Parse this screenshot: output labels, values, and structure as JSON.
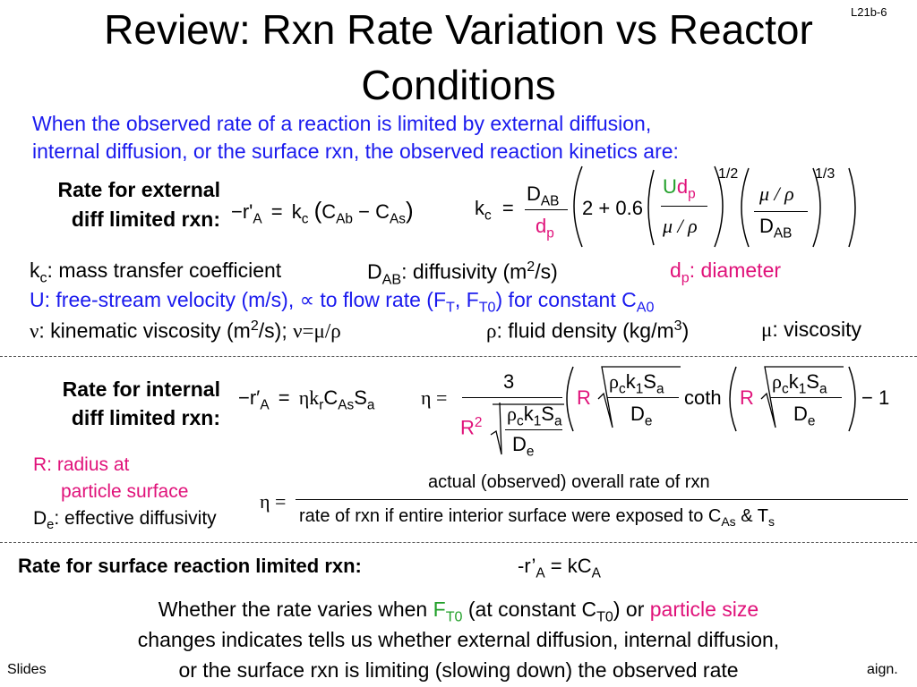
{
  "slide": {
    "id": "L21b-6",
    "title_line1": "Review: Rxn Rate Variation vs Reactor",
    "title_line2": "Conditions"
  },
  "intro": {
    "line1": "When the observed rate of a reaction is limited by external diffusion,",
    "line2": "internal diffusion, or the surface rxn, the observed reaction kinetics are:"
  },
  "external": {
    "label_line1": "Rate for external",
    "label_line2": "diff limited rxn:",
    "rate_lhs": "−r'",
    "rate_lhs_sub": "A",
    "eq_sign": "=",
    "kc": "k",
    "kc_sub": "c",
    "open_paren": "(",
    "cab": "C",
    "cab_sub": "Ab",
    "minus": "−",
    "cas": "C",
    "cas_sub": "As",
    "close_paren": ")",
    "kc2": "k",
    "kc2_sub": "c",
    "eq_sign2": "=",
    "dab_num": "D",
    "dab_num_sub": "AB",
    "dp_den": "d",
    "dp_den_sub": "p",
    "const_2": "2",
    "plus": "+",
    "const_06": "0.6",
    "u": "U",
    "udp_d": "d",
    "udp_sub": "p",
    "nu_num": "μ / ρ",
    "exp_half": "1/2",
    "mu_rho": "μ / ρ",
    "dab_den": "D",
    "dab_den_sub": "AB",
    "exp_third": "1/3"
  },
  "definitions": {
    "kc_sym": "k",
    "kc_sub": "c",
    "kc_text": ": mass transfer coefficient",
    "dab_sym": "D",
    "dab_sub": "AB",
    "dab_text": ": diffusivity (m",
    "dab_sup": "2",
    "dab_end": "/s)",
    "dp_sym": "d",
    "dp_sub": "p",
    "dp_text": ": diameter",
    "u_text": "U: free-stream velocity (m/s), ∝ to flow rate (F",
    "u_ft_sub": "T",
    "u_mid": ", F",
    "u_ft0_sub": "T0",
    "u_end": ") for constant C",
    "u_ca0_sub": "A0",
    "nu_sym": "ν",
    "nu_text": ": kinematic viscosity (m",
    "nu_sup": "2",
    "nu_end": "/s); ",
    "nu_eq": "ν=μ/ρ",
    "rho_sym": "ρ",
    "rho_text": ": fluid density (kg/m",
    "rho_sup": "3",
    "rho_end": ")",
    "mu_sym": "μ",
    "mu_text": ": viscosity"
  },
  "internal": {
    "label_line1": "Rate for internal",
    "label_line2": "diff limited rxn:",
    "rate_lhs": "−r′",
    "rate_lhs_sub": "A",
    "eq_sign": "=",
    "rhs": "ηk",
    "rhs_sub1": "r",
    "rhs_c": "C",
    "rhs_sub2": "As",
    "rhs_s": "S",
    "rhs_sub3": "a",
    "eta": "η",
    "eq_sign2": "=",
    "three": "3",
    "r2": "R",
    "r2_sup": "2",
    "rho_c": "ρ",
    "rho_c_sub": "c",
    "k1": "k",
    "k1_sub": "1",
    "s_a": "S",
    "s_a_sub": "a",
    "de": "D",
    "de_sub": "e",
    "R": "R",
    "coth": "coth",
    "minus_one": "− 1",
    "r_def": "R: radius at",
    "r_def2": "particle surface",
    "de_def_sym": "D",
    "de_def_sub": "e",
    "de_def_text": ": effective diffusivity",
    "eta2": "η =",
    "eff_num": "actual (observed) overall rate of rxn",
    "eff_den": "rate of rxn if entire interior surface were exposed to C",
    "eff_den_sub": "As",
    "eff_den_end": " & T",
    "eff_den_sub2": "s"
  },
  "surface": {
    "label": "Rate for surface reaction limited rxn:",
    "eq": "-r’",
    "eq_sub": "A",
    "eq_end": " = kC",
    "eq_sub2": "A"
  },
  "bottom": {
    "line1_a": "Whether the rate varies when ",
    "line1_ft0": "F",
    "line1_ft0_sub": "T0",
    "line1_b": " (at constant C",
    "line1_ct0_sub": "T0",
    "line1_c": ") or ",
    "line1_ps": "particle size",
    "line2": "changes indicates tells us whether external diffusion, internal diffusion,",
    "line3": "or the surface rxn is limiting (slowing down) the observed rate"
  },
  "footer": {
    "left": "Slides",
    "right": "aign."
  },
  "colors": {
    "blue": "#1a1aee",
    "pink": "#e0127a",
    "green": "#22a02a"
  }
}
